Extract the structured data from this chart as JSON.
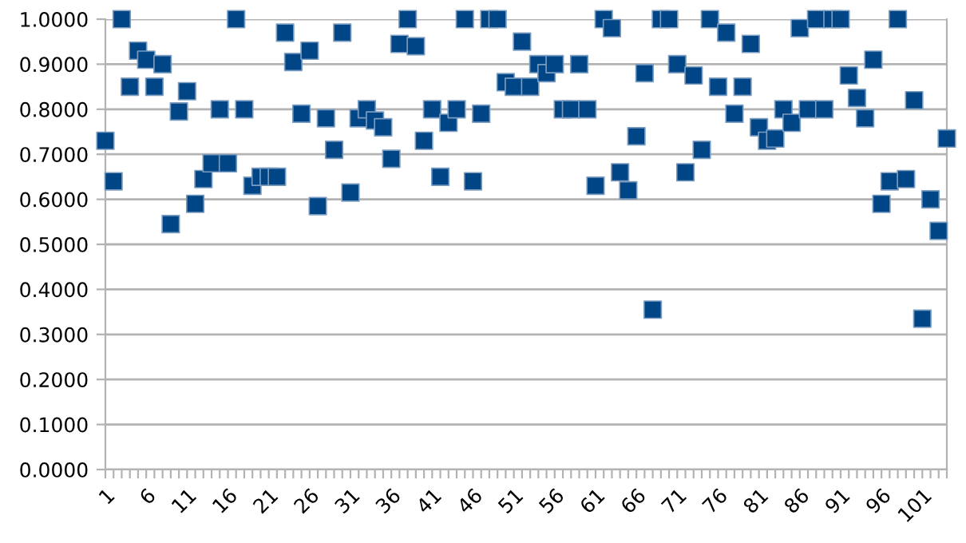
{
  "chart_data": {
    "type": "scatter",
    "categories": [
      "1",
      null,
      null,
      null,
      null,
      "6",
      null,
      null,
      null,
      null,
      "11",
      null,
      null,
      null,
      null,
      "16",
      null,
      null,
      null,
      null,
      "21",
      null,
      null,
      null,
      null,
      "26",
      null,
      null,
      null,
      null,
      "31",
      null,
      null,
      null,
      null,
      "36",
      null,
      null,
      null,
      null,
      "41",
      null,
      null,
      null,
      null,
      "46",
      null,
      null,
      null,
      null,
      "51",
      null,
      null,
      null,
      null,
      "56",
      null,
      null,
      null,
      null,
      "61",
      null,
      null,
      null,
      null,
      "66",
      null,
      null,
      null,
      null,
      "71",
      null,
      null,
      null,
      null,
      "76",
      null,
      null,
      null,
      null,
      "81",
      null,
      null,
      null,
      null,
      "86",
      null,
      null,
      null,
      null,
      "91",
      null,
      null,
      null,
      null,
      "96",
      null,
      null,
      null,
      null,
      "101",
      null,
      null,
      null
    ],
    "series": [
      {
        "color": "#004586",
        "values": [
          0.73,
          0.64,
          1.0,
          0.85,
          0.93,
          0.91,
          0.85,
          0.9,
          0.545,
          0.795,
          0.84,
          0.59,
          0.645,
          0.68,
          0.8,
          0.68,
          1.0,
          0.8,
          0.63,
          0.65,
          0.65,
          0.65,
          0.97,
          0.905,
          0.79,
          0.93,
          0.585,
          0.78,
          0.71,
          0.97,
          0.615,
          0.78,
          0.8,
          0.775,
          0.76,
          0.69,
          0.945,
          1.0,
          0.94,
          0.73,
          0.8,
          0.65,
          0.77,
          0.8,
          1.0,
          0.64,
          0.79,
          1.0,
          1.0,
          0.86,
          0.85,
          0.95,
          0.85,
          0.9,
          0.88,
          0.9,
          0.8,
          0.8,
          0.9,
          0.8,
          0.63,
          1.0,
          0.98,
          0.66,
          0.62,
          0.74,
          0.88,
          0.355,
          1.0,
          1.0,
          0.9,
          0.66,
          0.875,
          0.71,
          1.0,
          0.85,
          0.97,
          0.79,
          0.85,
          0.945,
          0.76,
          0.73,
          0.735,
          0.8,
          0.77,
          0.98,
          0.8,
          1.0,
          0.8,
          1.0,
          1.0,
          0.875,
          0.825,
          0.78,
          0.91,
          0.59,
          0.64,
          1.0,
          0.645,
          0.82,
          0.335,
          0.6,
          0.53,
          0.735
        ]
      }
    ],
    "ylim": [
      0,
      1
    ],
    "yticks": [
      {
        "value": 0,
        "label": "0.0000"
      },
      {
        "value": 0.1,
        "label": "0.1000"
      },
      {
        "value": 0.2,
        "label": "0.2000"
      },
      {
        "value": 0.3,
        "label": "0.3000"
      },
      {
        "value": 0.4,
        "label": "0.4000"
      },
      {
        "value": 0.5,
        "label": "0.5000"
      },
      {
        "value": 0.6,
        "label": "0.6000"
      },
      {
        "value": 0.7,
        "label": "0.7000"
      },
      {
        "value": 0.8,
        "label": "0.8000"
      },
      {
        "value": 0.9,
        "label": "0.9000"
      },
      {
        "value": 1,
        "label": "1.0000"
      }
    ],
    "grid": "y",
    "marker": "square",
    "legend": false
  }
}
